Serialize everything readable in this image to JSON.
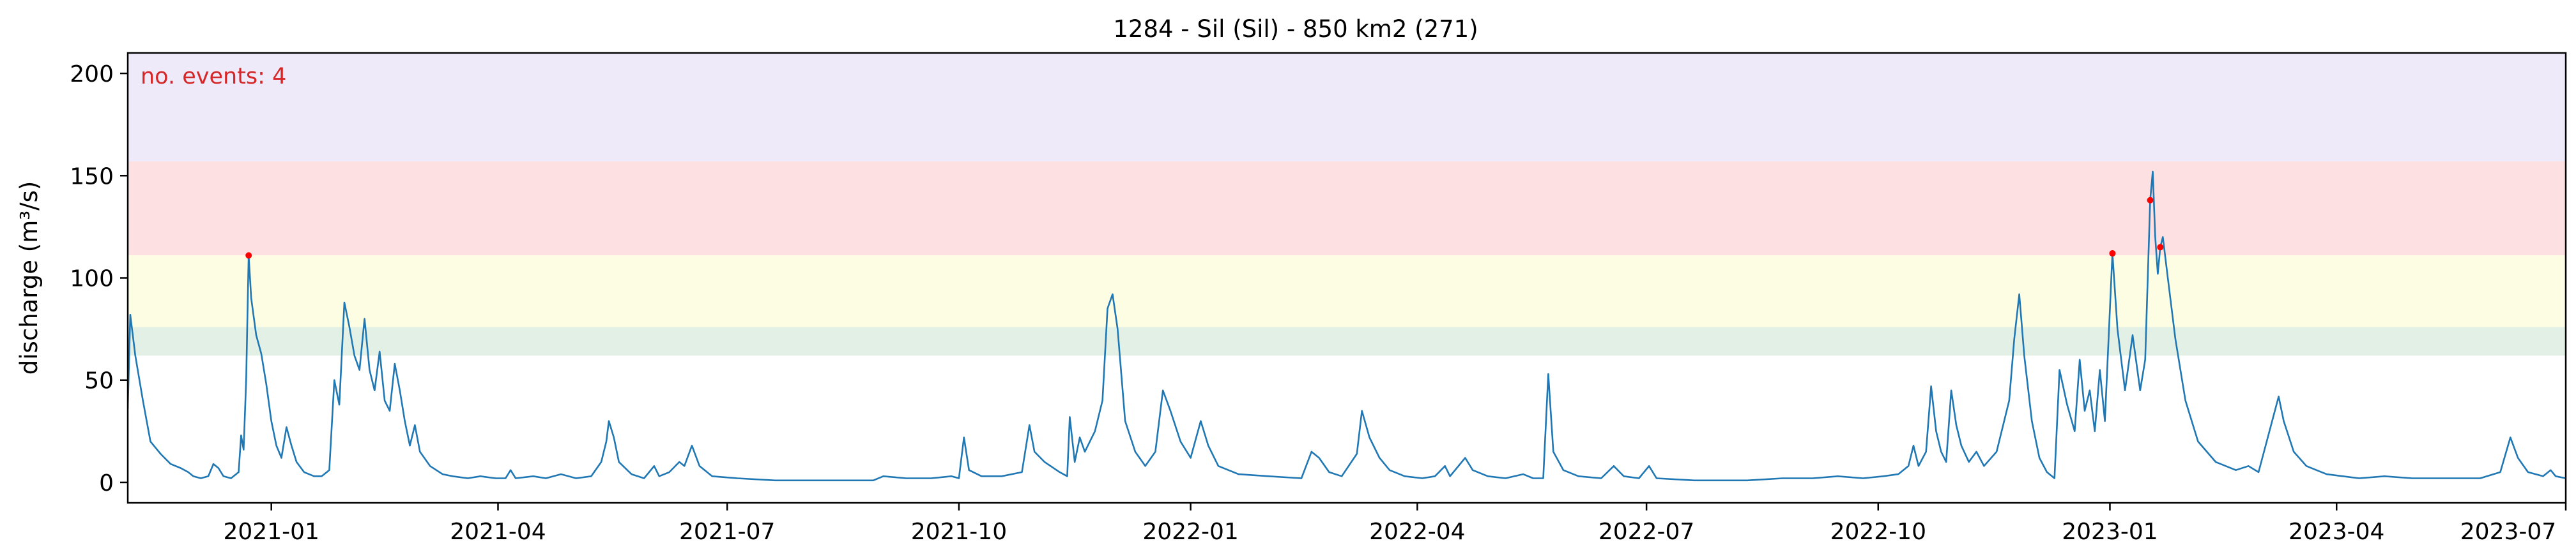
{
  "chart_data": {
    "type": "line",
    "title": "1284 - Sil (Sil) - 850 km2 (271)",
    "xlabel": "",
    "ylabel": "discharge (m³/s)",
    "ylim": [
      -10,
      210
    ],
    "xlim": [
      "2020-11-05",
      "2023-07-01"
    ],
    "grid": false,
    "annotation": {
      "text": "no. events: 4",
      "color": "#d62728"
    },
    "yticks": [
      0,
      50,
      100,
      150,
      200
    ],
    "xticks": [
      "2021-01",
      "2021-04",
      "2021-07",
      "2021-10",
      "2022-01",
      "2022-04",
      "2022-07",
      "2022-10",
      "2023-01",
      "2023-04",
      "2023-07"
    ],
    "threshold_bands": [
      {
        "from": 157,
        "to": 210,
        "color": "#efeafa"
      },
      {
        "from": 111,
        "to": 157,
        "color": "#fde0e2"
      },
      {
        "from": 76,
        "to": 111,
        "color": "#fdfde3"
      },
      {
        "from": 62,
        "to": 76,
        "color": "#e3f0e5"
      }
    ],
    "series": [
      {
        "color": "#1f77b4",
        "points": [
          [
            "2020-11-05",
            36
          ],
          [
            "2020-11-06",
            82
          ],
          [
            "2020-11-08",
            62
          ],
          [
            "2020-11-11",
            40
          ],
          [
            "2020-11-14",
            20
          ],
          [
            "2020-11-18",
            14
          ],
          [
            "2020-11-22",
            9
          ],
          [
            "2020-11-26",
            7
          ],
          [
            "2020-11-29",
            5
          ],
          [
            "2020-12-01",
            3
          ],
          [
            "2020-12-04",
            2
          ],
          [
            "2020-12-07",
            3
          ],
          [
            "2020-12-09",
            9
          ],
          [
            "2020-12-11",
            7
          ],
          [
            "2020-12-13",
            3
          ],
          [
            "2020-12-16",
            2
          ],
          [
            "2020-12-19",
            5
          ],
          [
            "2020-12-20",
            23
          ],
          [
            "2020-12-21",
            16
          ],
          [
            "2020-12-22",
            50
          ],
          [
            "2020-12-23",
            111
          ],
          [
            "2020-12-24",
            90
          ],
          [
            "2020-12-26",
            72
          ],
          [
            "2020-12-28",
            63
          ],
          [
            "2020-12-30",
            48
          ],
          [
            "2021-01-01",
            30
          ],
          [
            "2021-01-03",
            18
          ],
          [
            "2021-01-05",
            12
          ],
          [
            "2021-01-07",
            27
          ],
          [
            "2021-01-09",
            18
          ],
          [
            "2021-01-11",
            10
          ],
          [
            "2021-01-14",
            5
          ],
          [
            "2021-01-18",
            3
          ],
          [
            "2021-01-21",
            3
          ],
          [
            "2021-01-24",
            6
          ],
          [
            "2021-01-26",
            50
          ],
          [
            "2021-01-28",
            38
          ],
          [
            "2021-01-30",
            88
          ],
          [
            "2021-02-01",
            76
          ],
          [
            "2021-02-03",
            62
          ],
          [
            "2021-02-05",
            55
          ],
          [
            "2021-02-07",
            80
          ],
          [
            "2021-02-09",
            55
          ],
          [
            "2021-02-11",
            45
          ],
          [
            "2021-02-13",
            64
          ],
          [
            "2021-02-15",
            40
          ],
          [
            "2021-02-17",
            35
          ],
          [
            "2021-02-19",
            58
          ],
          [
            "2021-02-21",
            45
          ],
          [
            "2021-02-23",
            30
          ],
          [
            "2021-02-25",
            18
          ],
          [
            "2021-02-27",
            28
          ],
          [
            "2021-03-01",
            15
          ],
          [
            "2021-03-05",
            8
          ],
          [
            "2021-03-10",
            4
          ],
          [
            "2021-03-14",
            3
          ],
          [
            "2021-03-20",
            2
          ],
          [
            "2021-03-25",
            3
          ],
          [
            "2021-03-31",
            2
          ],
          [
            "2021-04-04",
            2
          ],
          [
            "2021-04-06",
            6
          ],
          [
            "2021-04-08",
            2
          ],
          [
            "2021-04-15",
            3
          ],
          [
            "2021-04-20",
            2
          ],
          [
            "2021-04-26",
            4
          ],
          [
            "2021-05-02",
            2
          ],
          [
            "2021-05-08",
            3
          ],
          [
            "2021-05-12",
            10
          ],
          [
            "2021-05-14",
            20
          ],
          [
            "2021-05-15",
            30
          ],
          [
            "2021-05-17",
            22
          ],
          [
            "2021-05-19",
            10
          ],
          [
            "2021-05-24",
            4
          ],
          [
            "2021-05-29",
            2
          ],
          [
            "2021-06-02",
            8
          ],
          [
            "2021-06-04",
            3
          ],
          [
            "2021-06-08",
            5
          ],
          [
            "2021-06-12",
            10
          ],
          [
            "2021-06-14",
            8
          ],
          [
            "2021-06-17",
            18
          ],
          [
            "2021-06-20",
            8
          ],
          [
            "2021-06-25",
            3
          ],
          [
            "2021-07-05",
            2
          ],
          [
            "2021-07-20",
            1
          ],
          [
            "2021-08-05",
            1
          ],
          [
            "2021-08-20",
            1
          ],
          [
            "2021-08-28",
            1
          ],
          [
            "2021-09-01",
            3
          ],
          [
            "2021-09-10",
            2
          ],
          [
            "2021-09-20",
            2
          ],
          [
            "2021-09-28",
            3
          ],
          [
            "2021-10-01",
            2
          ],
          [
            "2021-10-03",
            22
          ],
          [
            "2021-10-05",
            6
          ],
          [
            "2021-10-10",
            3
          ],
          [
            "2021-10-18",
            3
          ],
          [
            "2021-10-26",
            5
          ],
          [
            "2021-10-29",
            28
          ],
          [
            "2021-10-31",
            15
          ],
          [
            "2021-11-04",
            10
          ],
          [
            "2021-11-10",
            5
          ],
          [
            "2021-11-13",
            3
          ],
          [
            "2021-11-14",
            32
          ],
          [
            "2021-11-16",
            10
          ],
          [
            "2021-11-18",
            22
          ],
          [
            "2021-11-20",
            15
          ],
          [
            "2021-11-24",
            25
          ],
          [
            "2021-11-27",
            40
          ],
          [
            "2021-11-29",
            85
          ],
          [
            "2021-12-01",
            92
          ],
          [
            "2021-12-03",
            75
          ],
          [
            "2021-12-06",
            30
          ],
          [
            "2021-12-10",
            15
          ],
          [
            "2021-12-14",
            8
          ],
          [
            "2021-12-18",
            15
          ],
          [
            "2021-12-21",
            45
          ],
          [
            "2021-12-24",
            35
          ],
          [
            "2021-12-28",
            20
          ],
          [
            "2022-01-01",
            12
          ],
          [
            "2022-01-05",
            30
          ],
          [
            "2022-01-08",
            18
          ],
          [
            "2022-01-12",
            8
          ],
          [
            "2022-01-20",
            4
          ],
          [
            "2022-02-01",
            3
          ],
          [
            "2022-02-14",
            2
          ],
          [
            "2022-02-18",
            15
          ],
          [
            "2022-02-21",
            12
          ],
          [
            "2022-02-25",
            5
          ],
          [
            "2022-03-02",
            3
          ],
          [
            "2022-03-08",
            14
          ],
          [
            "2022-03-10",
            35
          ],
          [
            "2022-03-13",
            22
          ],
          [
            "2022-03-17",
            12
          ],
          [
            "2022-03-21",
            6
          ],
          [
            "2022-03-27",
            3
          ],
          [
            "2022-04-03",
            2
          ],
          [
            "2022-04-08",
            3
          ],
          [
            "2022-04-12",
            8
          ],
          [
            "2022-04-14",
            3
          ],
          [
            "2022-04-20",
            12
          ],
          [
            "2022-04-23",
            6
          ],
          [
            "2022-04-29",
            3
          ],
          [
            "2022-05-06",
            2
          ],
          [
            "2022-05-13",
            4
          ],
          [
            "2022-05-17",
            2
          ],
          [
            "2022-05-21",
            2
          ],
          [
            "2022-05-23",
            53
          ],
          [
            "2022-05-25",
            15
          ],
          [
            "2022-05-29",
            6
          ],
          [
            "2022-06-04",
            3
          ],
          [
            "2022-06-13",
            2
          ],
          [
            "2022-06-18",
            8
          ],
          [
            "2022-06-22",
            3
          ],
          [
            "2022-06-28",
            2
          ],
          [
            "2022-07-02",
            8
          ],
          [
            "2022-07-05",
            2
          ],
          [
            "2022-07-20",
            1
          ],
          [
            "2022-08-10",
            1
          ],
          [
            "2022-08-24",
            2
          ],
          [
            "2022-09-05",
            2
          ],
          [
            "2022-09-15",
            3
          ],
          [
            "2022-09-25",
            2
          ],
          [
            "2022-10-03",
            3
          ],
          [
            "2022-10-09",
            4
          ],
          [
            "2022-10-13",
            8
          ],
          [
            "2022-10-15",
            18
          ],
          [
            "2022-10-17",
            8
          ],
          [
            "2022-10-20",
            15
          ],
          [
            "2022-10-22",
            47
          ],
          [
            "2022-10-24",
            25
          ],
          [
            "2022-10-26",
            15
          ],
          [
            "2022-10-28",
            10
          ],
          [
            "2022-10-30",
            45
          ],
          [
            "2022-11-01",
            28
          ],
          [
            "2022-11-03",
            18
          ],
          [
            "2022-11-06",
            10
          ],
          [
            "2022-11-09",
            15
          ],
          [
            "2022-11-12",
            8
          ],
          [
            "2022-11-17",
            15
          ],
          [
            "2022-11-22",
            40
          ],
          [
            "2022-11-24",
            70
          ],
          [
            "2022-11-26",
            92
          ],
          [
            "2022-11-28",
            62
          ],
          [
            "2022-12-01",
            30
          ],
          [
            "2022-12-04",
            12
          ],
          [
            "2022-12-07",
            5
          ],
          [
            "2022-12-10",
            2
          ],
          [
            "2022-12-12",
            55
          ],
          [
            "2022-12-15",
            38
          ],
          [
            "2022-12-18",
            25
          ],
          [
            "2022-12-20",
            60
          ],
          [
            "2022-12-22",
            35
          ],
          [
            "2022-12-24",
            45
          ],
          [
            "2022-12-26",
            25
          ],
          [
            "2022-12-28",
            55
          ],
          [
            "2022-12-30",
            30
          ],
          [
            "2023-01-02",
            112
          ],
          [
            "2023-01-04",
            75
          ],
          [
            "2023-01-07",
            45
          ],
          [
            "2023-01-10",
            72
          ],
          [
            "2023-01-13",
            45
          ],
          [
            "2023-01-15",
            60
          ],
          [
            "2023-01-17",
            138
          ],
          [
            "2023-01-18",
            152
          ],
          [
            "2023-01-19",
            120
          ],
          [
            "2023-01-20",
            102
          ],
          [
            "2023-01-21",
            115
          ],
          [
            "2023-01-22",
            120
          ],
          [
            "2023-01-24",
            100
          ],
          [
            "2023-01-27",
            70
          ],
          [
            "2023-01-31",
            40
          ],
          [
            "2023-02-05",
            20
          ],
          [
            "2023-02-12",
            10
          ],
          [
            "2023-02-20",
            6
          ],
          [
            "2023-02-25",
            8
          ],
          [
            "2023-03-01",
            5
          ],
          [
            "2023-03-09",
            42
          ],
          [
            "2023-03-11",
            30
          ],
          [
            "2023-03-15",
            15
          ],
          [
            "2023-03-20",
            8
          ],
          [
            "2023-03-28",
            4
          ],
          [
            "2023-04-10",
            2
          ],
          [
            "2023-04-20",
            3
          ],
          [
            "2023-05-01",
            2
          ],
          [
            "2023-05-14",
            2
          ],
          [
            "2023-05-28",
            2
          ],
          [
            "2023-06-05",
            5
          ],
          [
            "2023-06-09",
            22
          ],
          [
            "2023-06-12",
            12
          ],
          [
            "2023-06-16",
            5
          ],
          [
            "2023-06-22",
            3
          ],
          [
            "2023-06-25",
            6
          ],
          [
            "2023-06-27",
            3
          ],
          [
            "2023-07-01",
            2
          ]
        ]
      }
    ],
    "event_markers": [
      [
        "2020-12-23",
        111
      ],
      [
        "2023-01-02",
        112
      ],
      [
        "2023-01-17",
        138
      ],
      [
        "2023-01-21",
        115
      ]
    ],
    "marker_color": "#ff0000"
  }
}
